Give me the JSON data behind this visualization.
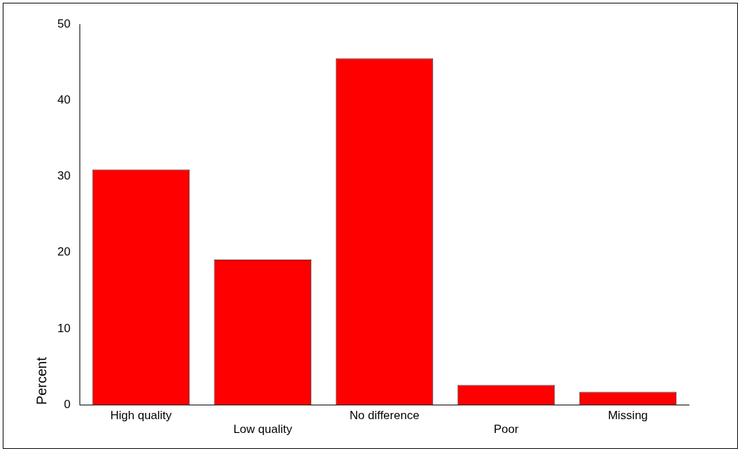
{
  "chart_data": {
    "type": "bar",
    "ylabel": "Percent",
    "categories": [
      "High quality",
      "Low quality",
      "No difference",
      "Poor",
      "Missing"
    ],
    "values": [
      30.9,
      19.1,
      45.5,
      2.6,
      1.7
    ],
    "color": "#ff0000",
    "ylim": [
      0,
      50
    ],
    "yticks": [
      0,
      10,
      20,
      30,
      40,
      50
    ],
    "grid": false,
    "legend": false
  }
}
